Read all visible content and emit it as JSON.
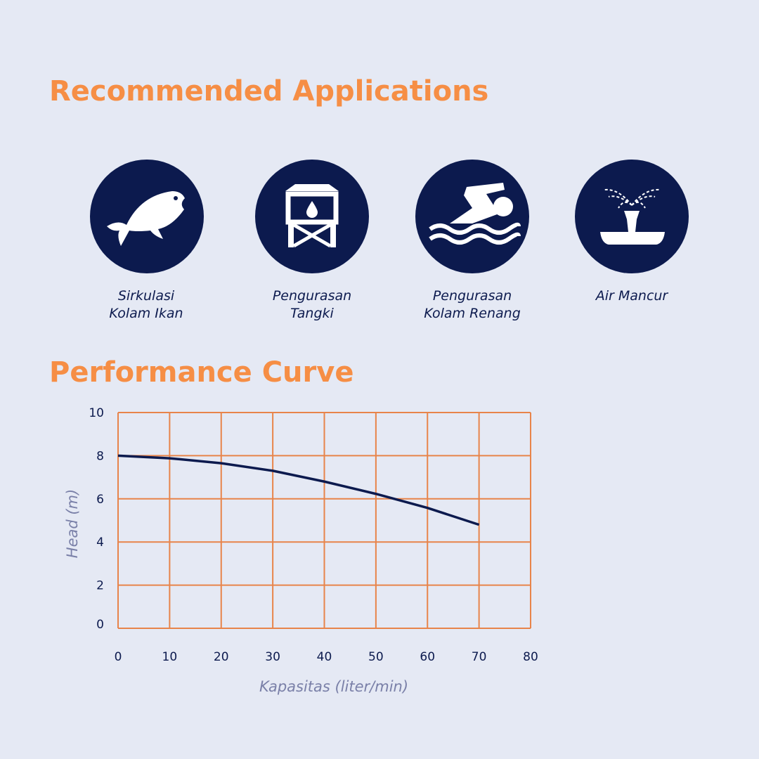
{
  "title": "Recommended Applications",
  "applications": [
    [
      "Sirkulasi",
      "Kolam Ikan"
    ],
    [
      "Pengurasan",
      "Tangki"
    ],
    [
      "Pengurasan",
      "Kolam Renang"
    ],
    [
      "Air Mancur"
    ]
  ],
  "chart_data": {
    "type": "line",
    "title": "Performance Curve",
    "x_label": "Kapasitas (liter/min)",
    "y_label": "Head (m)",
    "x": [
      0,
      10,
      20,
      30,
      40,
      50,
      60,
      70
    ],
    "values": [
      8.0,
      7.88,
      7.65,
      7.3,
      6.8,
      6.23,
      5.58,
      4.8
    ],
    "color": "#0c1a4e",
    "grid": true,
    "grid_color": "#e8844a",
    "xlim": [
      0,
      80
    ],
    "xticks": [
      0,
      10,
      20,
      30,
      40,
      50,
      60,
      70,
      80
    ],
    "ylim": [
      0,
      10
    ],
    "yticks": [
      0,
      2,
      4,
      6,
      8,
      10
    ]
  }
}
